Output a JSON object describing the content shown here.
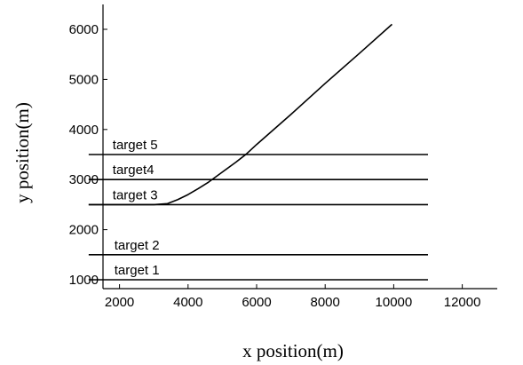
{
  "chart_data": {
    "type": "line",
    "title": "",
    "xlabel": "x position(m)",
    "ylabel": "y position(m)",
    "xlim": [
      1000,
      12000
    ],
    "ylim": [
      800,
      6500
    ],
    "x_ticks": [
      2000,
      4000,
      6000,
      8000,
      10000,
      12000
    ],
    "y_ticks": [
      1000,
      2000,
      3000,
      4000,
      5000,
      6000
    ],
    "grid": false,
    "legend": "none",
    "line_color": "#000000",
    "series": [
      {
        "name": "target 1",
        "x": [
          1100,
          11000
        ],
        "y": [
          1000,
          1000
        ],
        "label_x": 1200,
        "label_y": 1000
      },
      {
        "name": "target 2",
        "x": [
          1100,
          11000
        ],
        "y": [
          1500,
          1500
        ],
        "label_x": 1200,
        "label_y": 1500
      },
      {
        "name": "target 3",
        "x": [
          1100,
          11000
        ],
        "y": [
          2500,
          2500
        ],
        "label_x": 1150,
        "label_y": 2500
      },
      {
        "name": "target4",
        "x": [
          1100,
          11000
        ],
        "y": [
          3000,
          3000
        ],
        "label_x": 1150,
        "label_y": 3000
      },
      {
        "name": "target 5",
        "x": [
          1100,
          11000
        ],
        "y": [
          3500,
          3500
        ],
        "label_x": 1150,
        "label_y": 3500
      },
      {
        "name": "",
        "x": [
          1100,
          2000,
          3000,
          3400,
          3700,
          4000,
          4300,
          4600,
          4800,
          5000,
          5400,
          5700,
          6000,
          7000,
          8000,
          9000,
          9950
        ],
        "y": [
          2500,
          2500,
          2500,
          2520,
          2600,
          2700,
          2820,
          2950,
          3050,
          3150,
          3350,
          3510,
          3700,
          4300,
          4920,
          5520,
          6100
        ]
      }
    ]
  }
}
